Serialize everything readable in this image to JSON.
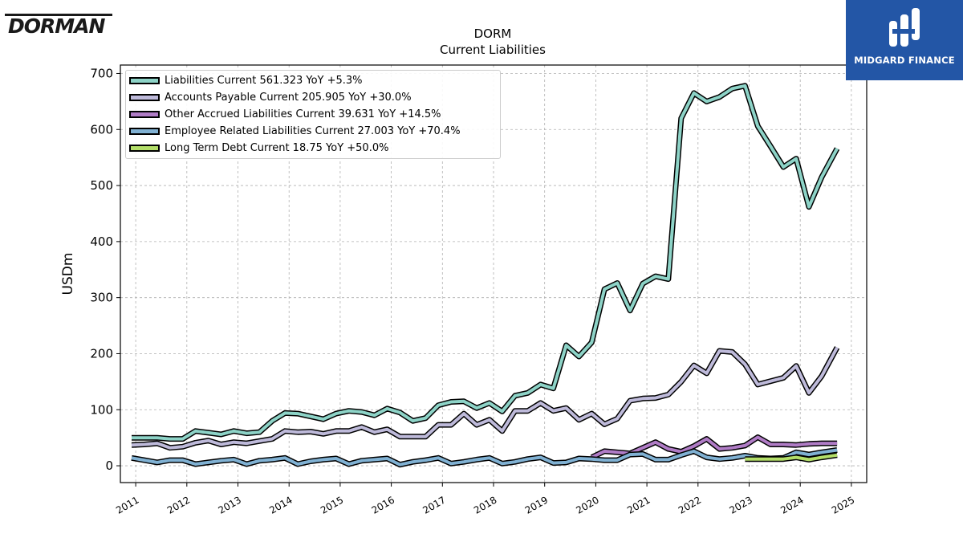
{
  "branding": {
    "left_logo_text": "DORMAN",
    "right_logo_text": "MIDGARD FINANCE",
    "right_logo_color": "#2356a6"
  },
  "header": {
    "ticker": "DORM",
    "subtitle": "Current  Liabilities"
  },
  "legend": {
    "items": [
      {
        "label": "Liabilities Current  561.323 YoY +5.3%",
        "color": "#8dd3c7"
      },
      {
        "label": "Accounts Payable Current  205.905 YoY +30.0%",
        "color": "#bebada"
      },
      {
        "label": "Other Accrued Liabilities Current  39.631 YoY +14.5%",
        "color": "#b07cc6"
      },
      {
        "label": "Employee Related Liabilities Current  27.003 YoY +70.4%",
        "color": "#80b1d3"
      },
      {
        "label": "Long Term Debt Current  18.75 YoY +50.0%",
        "color": "#b3de69"
      }
    ]
  },
  "chart_data": {
    "type": "line",
    "title": "DORM\nCurrent  Liabilities",
    "xlabel": "",
    "ylabel": "USDm",
    "xlim": [
      2010.7,
      2025.3
    ],
    "ylim": [
      -30,
      715
    ],
    "x_ticks": [
      "2011",
      "2012",
      "2013",
      "2014",
      "2015",
      "2016",
      "2017",
      "2018",
      "2019",
      "2020",
      "2021",
      "2022",
      "2023",
      "2024",
      "2025"
    ],
    "y_ticks": [
      "0",
      "100",
      "200",
      "300",
      "400",
      "500",
      "600",
      "700"
    ],
    "grid": true,
    "legend_position": "top-left",
    "series": [
      {
        "name": "Liabilities Current",
        "color": "#8dd3c7",
        "points": [
          [
            2010.92,
            50
          ],
          [
            2011.17,
            50
          ],
          [
            2011.42,
            50
          ],
          [
            2011.67,
            48
          ],
          [
            2011.92,
            48
          ],
          [
            2012.17,
            62
          ],
          [
            2012.42,
            59
          ],
          [
            2012.67,
            56
          ],
          [
            2012.92,
            62
          ],
          [
            2013.17,
            58
          ],
          [
            2013.42,
            60
          ],
          [
            2013.67,
            80
          ],
          [
            2013.92,
            94
          ],
          [
            2014.17,
            93
          ],
          [
            2014.42,
            88
          ],
          [
            2014.67,
            83
          ],
          [
            2014.92,
            93
          ],
          [
            2015.17,
            98
          ],
          [
            2015.42,
            96
          ],
          [
            2015.67,
            90
          ],
          [
            2015.92,
            102
          ],
          [
            2016.17,
            95
          ],
          [
            2016.42,
            80
          ],
          [
            2016.67,
            85
          ],
          [
            2016.92,
            108
          ],
          [
            2017.17,
            114
          ],
          [
            2017.42,
            115
          ],
          [
            2017.67,
            103
          ],
          [
            2017.92,
            112
          ],
          [
            2018.17,
            97
          ],
          [
            2018.42,
            125
          ],
          [
            2018.67,
            130
          ],
          [
            2018.92,
            145
          ],
          [
            2019.17,
            138
          ],
          [
            2019.42,
            215
          ],
          [
            2019.67,
            195
          ],
          [
            2019.92,
            220
          ],
          [
            2020.17,
            315
          ],
          [
            2020.42,
            326
          ],
          [
            2020.67,
            277
          ],
          [
            2020.92,
            325
          ],
          [
            2021.17,
            338
          ],
          [
            2021.42,
            333
          ],
          [
            2021.67,
            620
          ],
          [
            2021.92,
            665
          ],
          [
            2022.17,
            650
          ],
          [
            2022.42,
            658
          ],
          [
            2022.67,
            673
          ],
          [
            2022.92,
            678
          ],
          [
            2023.17,
            606
          ],
          [
            2023.42,
            570
          ],
          [
            2023.67,
            533
          ],
          [
            2023.92,
            548
          ],
          [
            2024.17,
            462
          ],
          [
            2024.42,
            515
          ],
          [
            2024.72,
            566
          ]
        ]
      },
      {
        "name": "Accounts Payable Current",
        "color": "#bebada",
        "points": [
          [
            2010.92,
            37
          ],
          [
            2011.17,
            38
          ],
          [
            2011.42,
            40
          ],
          [
            2011.67,
            32
          ],
          [
            2011.92,
            34
          ],
          [
            2012.17,
            41
          ],
          [
            2012.42,
            45
          ],
          [
            2012.67,
            38
          ],
          [
            2012.92,
            42
          ],
          [
            2013.17,
            40
          ],
          [
            2013.42,
            44
          ],
          [
            2013.67,
            48
          ],
          [
            2013.92,
            62
          ],
          [
            2014.17,
            60
          ],
          [
            2014.42,
            61
          ],
          [
            2014.67,
            57
          ],
          [
            2014.92,
            62
          ],
          [
            2015.17,
            62
          ],
          [
            2015.42,
            69
          ],
          [
            2015.67,
            60
          ],
          [
            2015.92,
            65
          ],
          [
            2016.17,
            52
          ],
          [
            2016.42,
            52
          ],
          [
            2016.67,
            52
          ],
          [
            2016.92,
            73
          ],
          [
            2017.17,
            73
          ],
          [
            2017.42,
            93
          ],
          [
            2017.67,
            73
          ],
          [
            2017.92,
            82
          ],
          [
            2018.17,
            62
          ],
          [
            2018.42,
            98
          ],
          [
            2018.67,
            98
          ],
          [
            2018.92,
            112
          ],
          [
            2019.17,
            98
          ],
          [
            2019.42,
            103
          ],
          [
            2019.67,
            82
          ],
          [
            2019.92,
            93
          ],
          [
            2020.17,
            74
          ],
          [
            2020.42,
            84
          ],
          [
            2020.67,
            116
          ],
          [
            2020.92,
            120
          ],
          [
            2021.17,
            121
          ],
          [
            2021.42,
            127
          ],
          [
            2021.67,
            150
          ],
          [
            2021.92,
            179
          ],
          [
            2022.17,
            165
          ],
          [
            2022.42,
            205
          ],
          [
            2022.67,
            203
          ],
          [
            2022.92,
            181
          ],
          [
            2023.17,
            145
          ],
          [
            2023.42,
            151
          ],
          [
            2023.67,
            157
          ],
          [
            2023.92,
            178
          ],
          [
            2024.17,
            130
          ],
          [
            2024.42,
            160
          ],
          [
            2024.72,
            211
          ]
        ]
      },
      {
        "name": "Other Accrued Liabilities Current",
        "color": "#b07cc6",
        "points": [
          [
            2019.92,
            15
          ],
          [
            2020.17,
            26
          ],
          [
            2020.42,
            24
          ],
          [
            2020.67,
            22
          ],
          [
            2020.92,
            32
          ],
          [
            2021.17,
            42
          ],
          [
            2021.42,
            30
          ],
          [
            2021.67,
            25
          ],
          [
            2021.92,
            35
          ],
          [
            2022.17,
            48
          ],
          [
            2022.42,
            30
          ],
          [
            2022.67,
            32
          ],
          [
            2022.92,
            36
          ],
          [
            2023.17,
            51
          ],
          [
            2023.42,
            38
          ],
          [
            2023.67,
            38
          ],
          [
            2023.92,
            37
          ],
          [
            2024.17,
            39
          ],
          [
            2024.42,
            40
          ],
          [
            2024.72,
            40
          ]
        ]
      },
      {
        "name": "Employee Related Liabilities Current",
        "color": "#80b1d3",
        "points": [
          [
            2010.92,
            14
          ],
          [
            2011.17,
            10
          ],
          [
            2011.42,
            6
          ],
          [
            2011.67,
            10
          ],
          [
            2011.92,
            10
          ],
          [
            2012.17,
            3
          ],
          [
            2012.42,
            6
          ],
          [
            2012.67,
            9
          ],
          [
            2012.92,
            11
          ],
          [
            2013.17,
            3
          ],
          [
            2013.42,
            9
          ],
          [
            2013.67,
            11
          ],
          [
            2013.92,
            14
          ],
          [
            2014.17,
            3
          ],
          [
            2014.42,
            8
          ],
          [
            2014.67,
            11
          ],
          [
            2014.92,
            13
          ],
          [
            2015.17,
            3
          ],
          [
            2015.42,
            9
          ],
          [
            2015.67,
            11
          ],
          [
            2015.92,
            13
          ],
          [
            2016.17,
            2
          ],
          [
            2016.42,
            7
          ],
          [
            2016.67,
            10
          ],
          [
            2016.92,
            14
          ],
          [
            2017.17,
            4
          ],
          [
            2017.42,
            7
          ],
          [
            2017.67,
            11
          ],
          [
            2017.92,
            14
          ],
          [
            2018.17,
            4
          ],
          [
            2018.42,
            7
          ],
          [
            2018.67,
            12
          ],
          [
            2018.92,
            15
          ],
          [
            2019.17,
            5
          ],
          [
            2019.42,
            6
          ],
          [
            2019.67,
            13
          ],
          [
            2019.92,
            12
          ],
          [
            2020.17,
            10
          ],
          [
            2020.42,
            10
          ],
          [
            2020.67,
            20
          ],
          [
            2020.92,
            21
          ],
          [
            2021.17,
            11
          ],
          [
            2021.42,
            11
          ],
          [
            2021.67,
            19
          ],
          [
            2021.92,
            26
          ],
          [
            2022.17,
            15
          ],
          [
            2022.42,
            12
          ],
          [
            2022.67,
            14
          ],
          [
            2022.92,
            18
          ],
          [
            2023.17,
            14
          ],
          [
            2023.42,
            13
          ],
          [
            2023.67,
            14
          ],
          [
            2023.92,
            24
          ],
          [
            2024.17,
            20
          ],
          [
            2024.42,
            24
          ],
          [
            2024.72,
            28
          ]
        ]
      },
      {
        "name": "Long Term Debt Current",
        "color": "#b3de69",
        "points": [
          [
            2022.92,
            12
          ],
          [
            2023.17,
            12
          ],
          [
            2023.42,
            12
          ],
          [
            2023.67,
            12
          ],
          [
            2023.92,
            15
          ],
          [
            2024.17,
            11
          ],
          [
            2024.42,
            15
          ],
          [
            2024.72,
            19
          ]
        ]
      }
    ]
  }
}
